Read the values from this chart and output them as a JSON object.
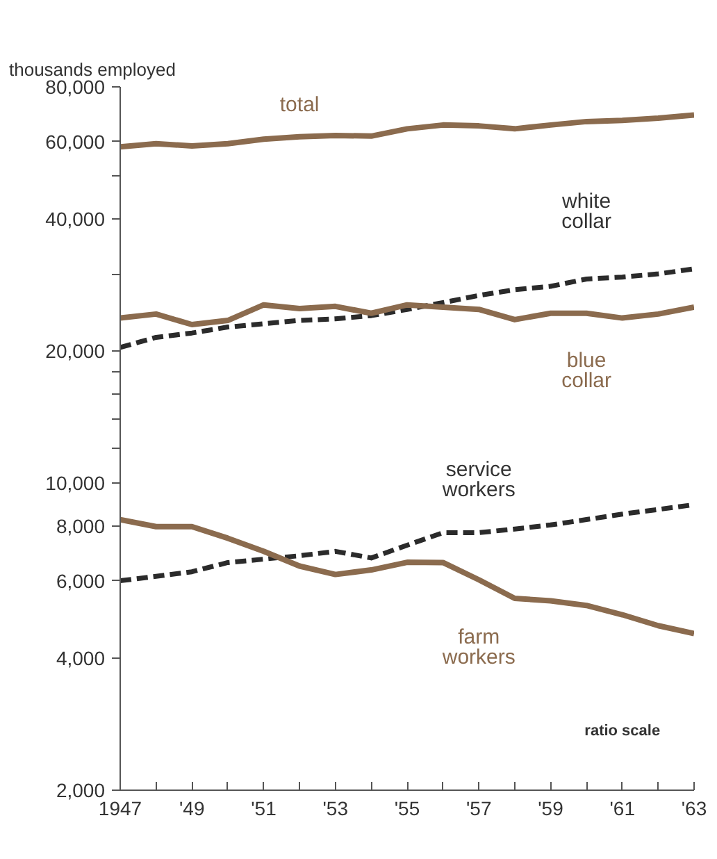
{
  "chart_data": {
    "type": "line",
    "ylabel": "thousands employed",
    "log": "y",
    "x": [
      1947,
      1948,
      1949,
      1950,
      1951,
      1952,
      1953,
      1954,
      1955,
      1956,
      1957,
      1958,
      1959,
      1960,
      1961,
      1962,
      1963
    ],
    "xlim": [
      1947,
      1963
    ],
    "xticks": [
      {
        "value": 1947,
        "label": "1947"
      },
      {
        "value": 1948,
        "label": null
      },
      {
        "value": 1949,
        "label": "'49"
      },
      {
        "value": 1950,
        "label": null
      },
      {
        "value": 1951,
        "label": "'51"
      },
      {
        "value": 1952,
        "label": null
      },
      {
        "value": 1953,
        "label": "'53"
      },
      {
        "value": 1954,
        "label": null
      },
      {
        "value": 1955,
        "label": "'55"
      },
      {
        "value": 1956,
        "label": null
      },
      {
        "value": 1957,
        "label": "'57"
      },
      {
        "value": 1958,
        "label": null
      },
      {
        "value": 1959,
        "label": "'59"
      },
      {
        "value": 1960,
        "label": null
      },
      {
        "value": 1961,
        "label": "'61"
      },
      {
        "value": 1962,
        "label": null
      },
      {
        "value": 1963,
        "label": "'63"
      }
    ],
    "ylim": [
      2000,
      80000
    ],
    "yticks": [
      {
        "value": 2000,
        "label": "2,000"
      },
      {
        "value": 4000,
        "label": "4,000"
      },
      {
        "value": 6000,
        "label": "6,000"
      },
      {
        "value": 8000,
        "label": "8,000"
      },
      {
        "value": 10000,
        "label": "10,000"
      },
      {
        "value": 12000,
        "label": null
      },
      {
        "value": 14000,
        "label": null
      },
      {
        "value": 16000,
        "label": null
      },
      {
        "value": 18000,
        "label": null
      },
      {
        "value": 20000,
        "label": "20,000"
      },
      {
        "value": 30000,
        "label": null
      },
      {
        "value": 40000,
        "label": "40,000"
      },
      {
        "value": 50000,
        "label": null
      },
      {
        "value": 60000,
        "label": "60,000"
      },
      {
        "value": 80000,
        "label": "80,000"
      }
    ],
    "grid": false,
    "marker": "none",
    "series": [
      {
        "name": "total",
        "color": "#8b6b4e",
        "line_style": "solid",
        "values": [
          58400,
          59400,
          58700,
          59400,
          60800,
          61600,
          62000,
          61800,
          64200,
          65500,
          65200,
          64200,
          65500,
          66700,
          67100,
          67900,
          69000
        ]
      },
      {
        "name": "white collar",
        "color": "#2b2b2b",
        "line_style": "dashed",
        "values": [
          20400,
          21500,
          22000,
          22700,
          23100,
          23500,
          23700,
          24100,
          24900,
          25800,
          26800,
          27600,
          28100,
          29200,
          29500,
          30000,
          30800
        ]
      },
      {
        "name": "blue collar",
        "color": "#8b6b4e",
        "line_style": "solid",
        "values": [
          23800,
          24300,
          23000,
          23500,
          25500,
          25000,
          25300,
          24400,
          25500,
          25200,
          24900,
          23600,
          24400,
          24400,
          23800,
          24300,
          25200
        ]
      },
      {
        "name": "service workers",
        "color": "#2b2b2b",
        "line_style": "dashed",
        "values": [
          6000,
          6140,
          6290,
          6600,
          6720,
          6840,
          7000,
          6760,
          7230,
          7720,
          7720,
          7870,
          8040,
          8270,
          8510,
          8720,
          8940
        ]
      },
      {
        "name": "farm workers",
        "color": "#8b6b4e",
        "line_style": "solid",
        "values": [
          8270,
          7970,
          7970,
          7500,
          7000,
          6480,
          6200,
          6350,
          6610,
          6600,
          6030,
          5470,
          5400,
          5270,
          5020,
          4740,
          4550
        ]
      }
    ],
    "annotations": [
      "ratio scale"
    ]
  }
}
